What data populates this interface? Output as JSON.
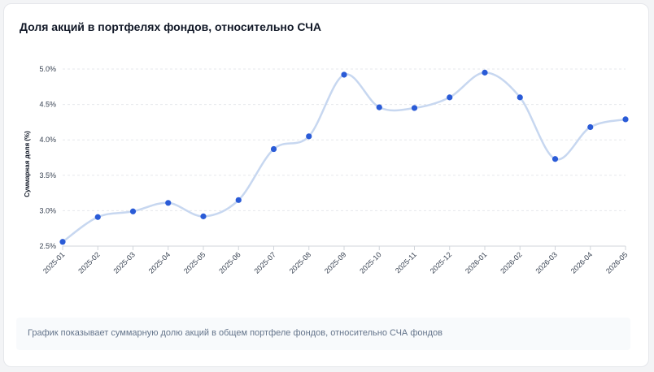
{
  "title": "Доля акций в портфелях фондов, относительно СЧА",
  "note": "График показывает суммарную долю акций в общем портфеле фондов, относительно СЧА фондов",
  "colors": {
    "line": "#c7d7f0",
    "point": "#2a5bd7",
    "grid": "#e5e7eb",
    "axis": "#d1d5db"
  },
  "chart_data": {
    "type": "line",
    "title": "Доля акций в портфелях фондов, относительно СЧА",
    "xlabel": "",
    "ylabel": "Суммарная доля (%)",
    "categories": [
      "2025-01",
      "2025-02",
      "2025-03",
      "2025-04",
      "2025-05",
      "2025-06",
      "2025-07",
      "2025-08",
      "2025-09",
      "2025-10",
      "2025-11",
      "2025-12",
      "2026-01",
      "2026-02",
      "2026-03",
      "2026-04",
      "2026-05"
    ],
    "values": [
      2.56,
      2.91,
      2.99,
      3.11,
      2.92,
      3.15,
      3.87,
      4.05,
      4.92,
      4.46,
      4.45,
      4.6,
      4.95,
      4.6,
      3.73,
      4.18,
      4.29
    ],
    "ylim": [
      2.5,
      5.0
    ],
    "yticks": [
      2.5,
      3.0,
      3.5,
      4.0,
      4.5,
      5.0
    ],
    "ytick_labels": [
      "2.5%",
      "3.0%",
      "3.5%",
      "4.0%",
      "4.5%",
      "5.0%"
    ],
    "grid": true,
    "legend": "none"
  }
}
